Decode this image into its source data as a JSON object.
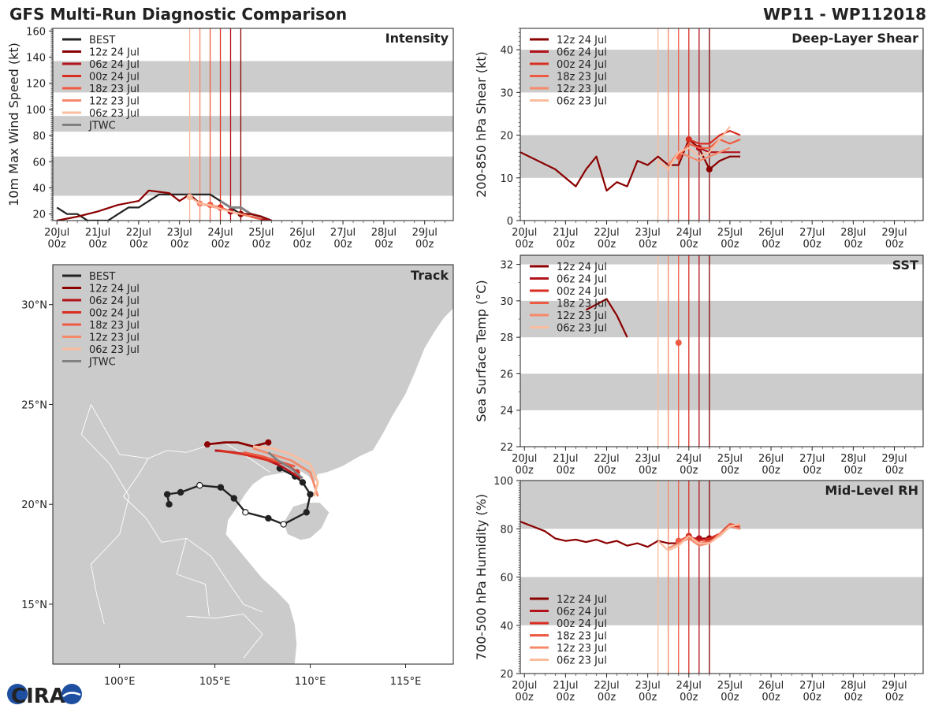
{
  "header": {
    "title": "GFS Multi-Run Diagnostic Comparison",
    "storm": "WP11 - WP112018"
  },
  "logo": {
    "text": "CIRA"
  },
  "colors": {
    "BEST": "#222222",
    "12z 24 Jul": "#8b0000",
    "06z 24 Jul": "#b2121b",
    "00z 24 Jul": "#d92d20",
    "18z 23 Jul": "#ee5a42",
    "12z 23 Jul": "#f5896a",
    "06z 23 Jul": "#fbbc9e",
    "JTWC": "#808080",
    "band": "#cccccc",
    "land": "#cbcbcb",
    "sea": "#ffffff"
  },
  "time_ticks": [
    [
      "20Jul",
      "00z"
    ],
    [
      "21Jul",
      "00z"
    ],
    [
      "22Jul",
      "00z"
    ],
    [
      "23Jul",
      "00z"
    ],
    [
      "24Jul",
      "00z"
    ],
    [
      "25Jul",
      "00z"
    ],
    [
      "26Jul",
      "00z"
    ],
    [
      "27Jul",
      "00z"
    ],
    [
      "28Jul",
      "00z"
    ],
    [
      "29Jul",
      "00z"
    ]
  ],
  "chart_data": [
    {
      "id": "intensity",
      "type": "line",
      "title": "Intensity",
      "ylabel": "10m Max Wind Speed (kt)",
      "ylim": [
        15,
        162
      ],
      "xlim": [
        -0.1,
        9.7
      ],
      "yticks": [
        20,
        40,
        60,
        80,
        100,
        120,
        140,
        160
      ],
      "bands": [
        [
          34,
          64
        ],
        [
          83,
          95
        ],
        [
          113,
          137
        ]
      ],
      "run_times": [
        3.25,
        3.5,
        3.75,
        4.0,
        4.25,
        4.5
      ],
      "legend": [
        "BEST",
        "12z 24 Jul",
        "06z 24 Jul",
        "00z 24 Jul",
        "18z 23 Jul",
        "12z 23 Jul",
        "06z 23 Jul",
        "JTWC"
      ],
      "series": [
        {
          "name": "BEST",
          "x": [
            0,
            0.25,
            0.5,
            0.75,
            1.0,
            1.25,
            1.5,
            1.75,
            2.0,
            2.25,
            2.5,
            2.75,
            3.0,
            3.25,
            3.5,
            3.75,
            4.0,
            4.25,
            4.5,
            4.75
          ],
          "y": [
            25,
            20,
            20,
            15,
            15,
            15,
            20,
            25,
            25,
            30,
            35,
            35,
            35,
            35,
            35,
            35,
            30,
            25,
            20,
            20
          ]
        },
        {
          "name": "JTWC",
          "x": [
            4.0,
            4.25,
            4.5,
            4.75,
            5.0,
            5.25
          ],
          "y": [
            30,
            25,
            25,
            20,
            18,
            15
          ]
        },
        {
          "name": "12z 24 Jul",
          "x": [
            0,
            0.5,
            1.0,
            1.5,
            2.0,
            2.25,
            2.5,
            2.75,
            3.0,
            3.25,
            3.5,
            4.0,
            4.25,
            4.5,
            4.75,
            5.0,
            5.25
          ],
          "y": [
            15,
            18,
            22,
            27,
            30,
            38,
            37,
            36,
            30,
            35,
            28,
            25,
            22,
            20,
            20,
            18,
            15
          ],
          "mark": [
            4.5
          ]
        },
        {
          "name": "06z 24 Jul",
          "x": [
            4.25,
            4.5,
            4.75,
            5.0,
            5.25
          ],
          "y": [
            22,
            20,
            18,
            16,
            15
          ],
          "mark": [
            4.25
          ]
        },
        {
          "name": "00z 24 Jul",
          "x": [
            4.0,
            4.25,
            4.5,
            4.75,
            5.0
          ],
          "y": [
            25,
            22,
            20,
            18,
            16
          ],
          "mark": [
            4.0
          ]
        },
        {
          "name": "18z 23 Jul",
          "x": [
            3.75,
            4.0,
            4.25,
            4.5,
            4.75,
            5.0
          ],
          "y": [
            27,
            25,
            22,
            20,
            18,
            16
          ],
          "mark": [
            3.75
          ]
        },
        {
          "name": "12z 23 Jul",
          "x": [
            3.5,
            3.75,
            4.0,
            4.25,
            4.5,
            4.75
          ],
          "y": [
            28,
            26,
            24,
            22,
            20,
            18
          ],
          "mark": [
            3.5
          ]
        },
        {
          "name": "06z 23 Jul",
          "x": [
            3.25,
            3.5,
            3.75,
            4.0,
            4.25,
            4.5
          ],
          "y": [
            33,
            28,
            27,
            24,
            22,
            20
          ],
          "mark": [
            3.25
          ]
        }
      ]
    },
    {
      "id": "shear",
      "type": "line",
      "title": "Deep-Layer Shear",
      "ylabel": "200-850 hPa Shear (kt)",
      "ylim": [
        0,
        45
      ],
      "xlim": [
        -0.1,
        9.7
      ],
      "yticks": [
        0,
        10,
        20,
        30,
        40
      ],
      "bands": [
        [
          10,
          20
        ],
        [
          30,
          40
        ]
      ],
      "run_times": [
        3.25,
        3.5,
        3.75,
        4.0,
        4.25,
        4.5
      ],
      "legend": [
        "12z 24 Jul",
        "06z 24 Jul",
        "00z 24 Jul",
        "18z 23 Jul",
        "12z 23 Jul",
        "06z 23 Jul"
      ],
      "series": [
        {
          "name": "12z 24 Jul",
          "x": [
            -0.1,
            0.75,
            1.25,
            1.5,
            1.75,
            2.0,
            2.25,
            2.5,
            2.75,
            3.0,
            3.25,
            3.5,
            3.75,
            4.0,
            4.25,
            4.5,
            4.75,
            5.0,
            5.25
          ],
          "y": [
            16,
            12,
            8,
            12,
            15,
            7,
            9,
            8,
            14,
            13,
            15,
            13,
            13,
            19,
            17,
            12,
            14,
            15,
            15
          ],
          "mark": [
            4.5
          ]
        },
        {
          "name": "06z 24 Jul",
          "x": [
            4.25,
            4.5,
            4.75,
            5.0,
            5.25
          ],
          "y": [
            17,
            16,
            16,
            16,
            16
          ],
          "mark": [
            4.25
          ]
        },
        {
          "name": "00z 24 Jul",
          "x": [
            4.0,
            4.25,
            4.5,
            4.75,
            5.0,
            5.25
          ],
          "y": [
            19,
            18,
            18,
            20,
            21,
            20
          ],
          "mark": [
            4.0
          ]
        },
        {
          "name": "18z 23 Jul",
          "x": [
            3.75,
            4.0,
            4.25,
            4.5,
            4.75,
            5.0,
            5.25
          ],
          "y": [
            15,
            18,
            17,
            17,
            19,
            18,
            19
          ],
          "mark": [
            3.75
          ]
        },
        {
          "name": "12z 23 Jul",
          "x": [
            3.5,
            3.75,
            4.0,
            4.25,
            4.5,
            4.75,
            5.0
          ],
          "y": [
            13,
            16,
            15,
            14,
            15,
            16,
            17
          ]
        },
        {
          "name": "06z 23 Jul",
          "x": [
            3.25,
            3.5,
            3.75,
            4.0,
            4.25,
            4.5,
            4.75,
            5.0
          ],
          "y": [
            14,
            12,
            16,
            17,
            15,
            16,
            19,
            22
          ]
        }
      ]
    },
    {
      "id": "sst",
      "type": "line",
      "title": "SST",
      "ylabel": "Sea Surface Temp (°C)",
      "ylim": [
        22,
        32.5
      ],
      "xlim": [
        -0.1,
        9.7
      ],
      "yticks": [
        22,
        24,
        26,
        28,
        30,
        32
      ],
      "bands": [
        [
          24,
          26
        ],
        [
          28,
          30
        ],
        [
          32,
          34
        ]
      ],
      "run_times": [
        3.25,
        3.5,
        3.75,
        4.0,
        4.25,
        4.5
      ],
      "legend": [
        "12z 24 Jul",
        "06z 24 Jul",
        "00z 24 Jul",
        "18z 23 Jul",
        "12z 23 Jul",
        "06z 23 Jul"
      ],
      "series": [
        {
          "name": "12z 24 Jul",
          "x": [
            1.5,
            1.75,
            2.0,
            2.25,
            2.5
          ],
          "y": [
            29.5,
            29.8,
            30.1,
            29.2,
            28.0
          ]
        },
        {
          "name": "18z 23 Jul",
          "x": [
            3.75
          ],
          "y": [
            27.7
          ],
          "mark": [
            3.75
          ]
        }
      ]
    },
    {
      "id": "rh",
      "type": "line",
      "title": "Mid-Level RH",
      "ylabel": "700-500 hPa Humidity (%)",
      "ylim": [
        20,
        100
      ],
      "xlim": [
        -0.1,
        9.7
      ],
      "yticks": [
        20,
        40,
        60,
        80,
        100
      ],
      "bands": [
        [
          40,
          60
        ],
        [
          80,
          100
        ]
      ],
      "run_times": [
        3.25,
        3.5,
        3.75,
        4.0,
        4.25,
        4.5
      ],
      "legend": [
        "12z 24 Jul",
        "06z 24 Jul",
        "00z 24 Jul",
        "18z 23 Jul",
        "12z 23 Jul",
        "06z 23 Jul"
      ],
      "series": [
        {
          "name": "12z 24 Jul",
          "x": [
            -0.1,
            0.5,
            0.75,
            1.0,
            1.25,
            1.5,
            1.75,
            2.0,
            2.25,
            2.5,
            2.75,
            3.0,
            3.25,
            3.5,
            3.75,
            4.0,
            4.25,
            4.5,
            4.75,
            5.0,
            5.25
          ],
          "y": [
            83,
            79,
            76,
            75,
            75.5,
            74.5,
            75.5,
            74,
            75,
            73,
            74,
            72.5,
            75,
            74,
            74,
            76,
            76,
            76,
            77,
            81,
            80
          ],
          "mark": [
            4.5
          ]
        },
        {
          "name": "06z 24 Jul",
          "x": [
            4.25,
            4.5,
            4.75,
            5.0,
            5.25
          ],
          "y": [
            76,
            75,
            77,
            82,
            80
          ],
          "mark": [
            4.25
          ]
        },
        {
          "name": "00z 24 Jul",
          "x": [
            4.0,
            4.25,
            4.5,
            4.75,
            5.0,
            5.25
          ],
          "y": [
            77,
            75,
            76,
            78,
            82,
            81
          ],
          "mark": [
            4.0
          ]
        },
        {
          "name": "18z 23 Jul",
          "x": [
            3.75,
            4.0,
            4.25,
            4.5,
            4.75,
            5.0,
            5.25
          ],
          "y": [
            75,
            77,
            74,
            75,
            77,
            82,
            81
          ],
          "mark": [
            3.75
          ]
        },
        {
          "name": "12z 23 Jul",
          "x": [
            3.5,
            3.75,
            4.0,
            4.25,
            4.5,
            4.75,
            5.0,
            5.25
          ],
          "y": [
            72,
            74,
            76,
            73,
            74,
            78,
            81,
            80
          ]
        },
        {
          "name": "06z 23 Jul",
          "x": [
            3.25,
            3.5,
            3.75,
            4.0,
            4.25,
            4.5,
            4.75,
            5.0,
            5.25
          ],
          "y": [
            75,
            71,
            73,
            77,
            74,
            74,
            77,
            81,
            82
          ]
        }
      ]
    },
    {
      "id": "track",
      "type": "scatter",
      "title": "Track",
      "xlim": [
        96.5,
        117.5
      ],
      "ylim": [
        12,
        32
      ],
      "xticks": [
        [
          100,
          "100°E"
        ],
        [
          105,
          "105°E"
        ],
        [
          110,
          "110°E"
        ],
        [
          115,
          "115°E"
        ]
      ],
      "yticks": [
        [
          15,
          "15°N"
        ],
        [
          20,
          "20°N"
        ],
        [
          25,
          "25°N"
        ],
        [
          30,
          "30°N"
        ]
      ],
      "legend": [
        "BEST",
        "12z 24 Jul",
        "06z 24 Jul",
        "00z 24 Jul",
        "18z 23 Jul",
        "12z 23 Jul",
        "06z 23 Jul",
        "JTWC"
      ],
      "tracks": [
        {
          "name": "BEST",
          "lon": [
            102.6,
            102.5,
            103.2,
            104.2,
            105.3,
            106.0,
            106.6,
            107.8,
            108.6,
            109.8,
            110.0,
            109.6,
            109.2,
            108.4
          ],
          "lat": [
            20.0,
            20.5,
            20.6,
            20.95,
            20.85,
            20.3,
            19.6,
            19.3,
            19.0,
            19.6,
            20.5,
            21.1,
            21.4,
            21.8
          ],
          "open": [
            3,
            6,
            8
          ]
        },
        {
          "name": "12z 24 Jul",
          "lon": [
            107.8,
            107.0,
            106.2,
            105.5,
            104.6
          ],
          "lat": [
            23.1,
            22.9,
            23.1,
            23.1,
            23.0
          ],
          "dots": [
            0,
            4
          ]
        },
        {
          "name": "06z 24 Jul",
          "lon": [
            109.5,
            108.5,
            107.3,
            106.0,
            105.0
          ],
          "lat": [
            21.3,
            21.9,
            22.4,
            22.6,
            22.7
          ]
        },
        {
          "name": "00z 24 Jul",
          "lon": [
            109.3,
            108.8,
            107.8,
            106.5,
            105.2
          ],
          "lat": [
            21.6,
            22.0,
            22.2,
            22.5,
            22.7
          ],
          "dots": [
            0
          ]
        },
        {
          "name": "18z 23 Jul",
          "lon": [
            109.2,
            108.5,
            107.5,
            106.5
          ],
          "lat": [
            21.9,
            22.1,
            22.4,
            22.6
          ]
        },
        {
          "name": "12z 23 Jul",
          "lon": [
            110.4,
            110.0,
            109.0,
            108.0,
            107.0
          ],
          "lat": [
            20.4,
            21.6,
            22.2,
            22.5,
            22.8
          ]
        },
        {
          "name": "06z 23 Jul",
          "lon": [
            110.2,
            110.4,
            110.0,
            109.0,
            108.0,
            107.0
          ],
          "lat": [
            20.4,
            21.1,
            22.0,
            22.5,
            22.8,
            22.9
          ]
        },
        {
          "name": "JTWC",
          "lon": [
            109.6,
            109.0,
            108.3,
            107.8
          ],
          "lat": [
            21.3,
            21.8,
            22.2,
            22.6
          ]
        }
      ]
    }
  ]
}
